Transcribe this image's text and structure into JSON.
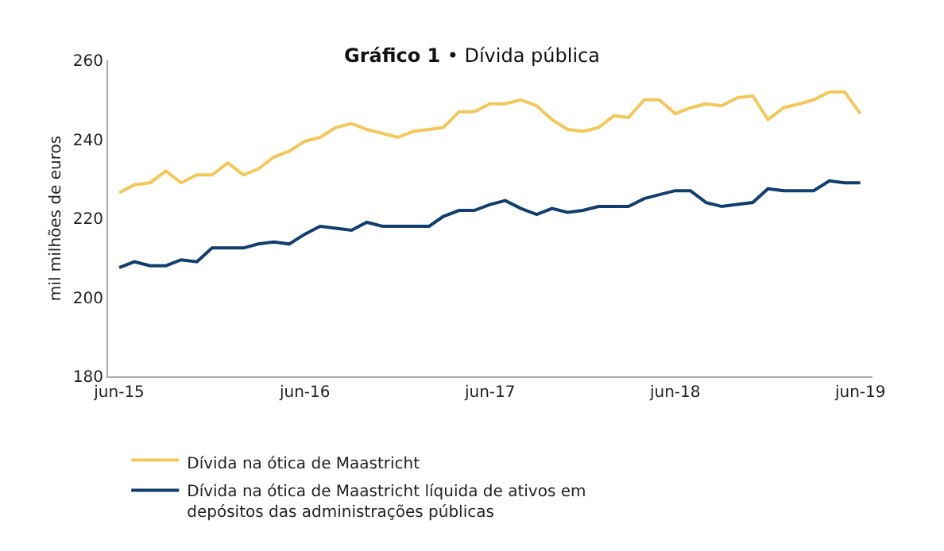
{
  "chart_data": {
    "type": "line",
    "title": "Gráfico 1 • Dívida pública",
    "ylabel": "mil milhões de euros",
    "x": [
      "2015-06",
      "2015-07",
      "2015-08",
      "2015-09",
      "2015-10",
      "2015-11",
      "2015-12",
      "2016-01",
      "2016-02",
      "2016-03",
      "2016-04",
      "2016-05",
      "2016-06",
      "2016-07",
      "2016-08",
      "2016-09",
      "2016-10",
      "2016-11",
      "2016-12",
      "2017-01",
      "2017-02",
      "2017-03",
      "2017-04",
      "2017-05",
      "2017-06",
      "2017-07",
      "2017-08",
      "2017-09",
      "2017-10",
      "2017-11",
      "2017-12",
      "2018-01",
      "2018-02",
      "2018-03",
      "2018-04",
      "2018-05",
      "2018-06",
      "2018-07",
      "2018-08",
      "2018-09",
      "2018-10",
      "2018-11",
      "2018-12",
      "2019-01",
      "2019-02",
      "2019-03",
      "2019-04",
      "2019-05",
      "2019-06"
    ],
    "series": [
      {
        "name": "Dívida na ótica de Maastricht",
        "color": "#f2c85b",
        "values": [
          226.5,
          228.5,
          229,
          232,
          229,
          231,
          231,
          234,
          231,
          232.5,
          235.5,
          237,
          239.5,
          240.5,
          243,
          244,
          242.5,
          241.5,
          240.5,
          242,
          242.5,
          243,
          247,
          247,
          249,
          249,
          250,
          248.5,
          245,
          242.5,
          242,
          243,
          246,
          245.5,
          250,
          250,
          246.5,
          248,
          249,
          248.5,
          250.5,
          251,
          245,
          248,
          249,
          250,
          252,
          252,
          246.5
        ]
      },
      {
        "name": "Dívida na ótica de Maastricht líquida de ativos em depósitos das administrações públicas",
        "color": "#123e6e",
        "values": [
          207.5,
          209,
          208,
          208,
          209.5,
          209,
          212.5,
          212.5,
          212.5,
          213.5,
          214,
          213.5,
          216,
          218,
          217.5,
          217,
          219,
          218,
          218,
          218,
          218,
          220.5,
          222,
          222,
          223.5,
          224.5,
          222.5,
          221,
          222.5,
          221.5,
          222,
          223,
          223,
          223,
          225,
          226,
          227,
          227,
          224,
          223,
          223.5,
          224,
          227.5,
          227,
          227,
          227,
          229.5,
          229,
          229
        ]
      }
    ],
    "xlim": [
      "2015-05-10",
      "2019-06-25"
    ],
    "xticks": [
      {
        "value": "2015-06",
        "label": "jun-15"
      },
      {
        "value": "2016-06",
        "label": "jun-16"
      },
      {
        "value": "2017-06",
        "label": "jun-17"
      },
      {
        "value": "2018-06",
        "label": "jun-18"
      },
      {
        "value": "2019-06",
        "label": "jun-19"
      }
    ],
    "ylim": [
      180,
      260
    ],
    "yticks": [
      180,
      200,
      220,
      240,
      260
    ],
    "grid": false,
    "legend": "bottom",
    "marker": "none",
    "line_style": "solid"
  }
}
